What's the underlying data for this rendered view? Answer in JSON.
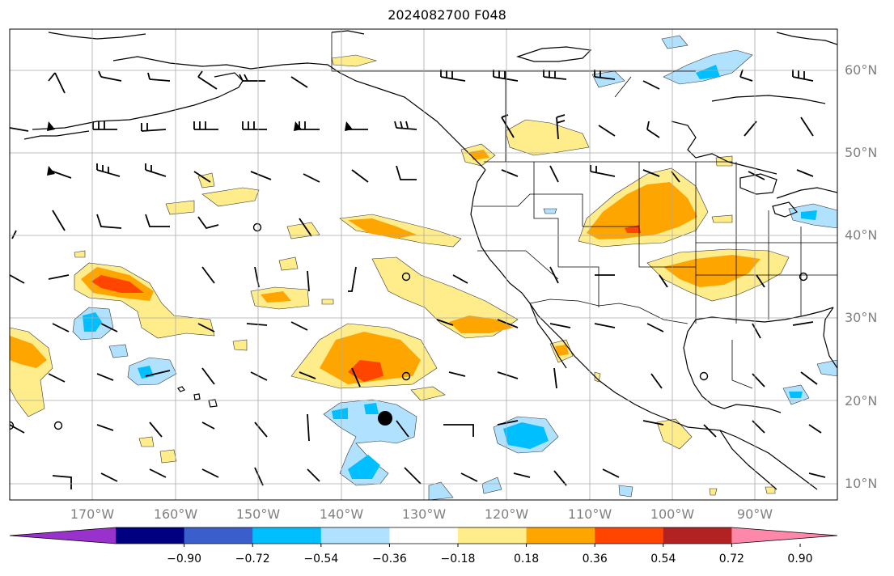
{
  "title": "2024082700 F048",
  "lat_labels": [
    "60°N",
    "50°N",
    "40°N",
    "30°N",
    "20°N",
    "10°N"
  ],
  "lon_labels": [
    "170°W",
    "160°W",
    "150°W",
    "140°W",
    "130°W",
    "120°W",
    "110°W",
    "100°W",
    "90°W"
  ],
  "colorbar": {
    "tick_labels": [
      "−0.90",
      "−0.72",
      "−0.54",
      "−0.36",
      "−0.18",
      "0.18",
      "0.36",
      "0.54",
      "0.72",
      "0.90"
    ],
    "colors": [
      "#9932cc",
      "#000080",
      "#3a5fcd",
      "#00bfff",
      "#b0e2ff",
      "#ffffff",
      "#ffec8b",
      "#ffa500",
      "#ff4500",
      "#b22222",
      "#ff88aa"
    ]
  },
  "map": {
    "extent_lon": [
      -180,
      -80
    ],
    "extent_lat": [
      8,
      65
    ],
    "gridline_color": "#aaaaaa"
  }
}
